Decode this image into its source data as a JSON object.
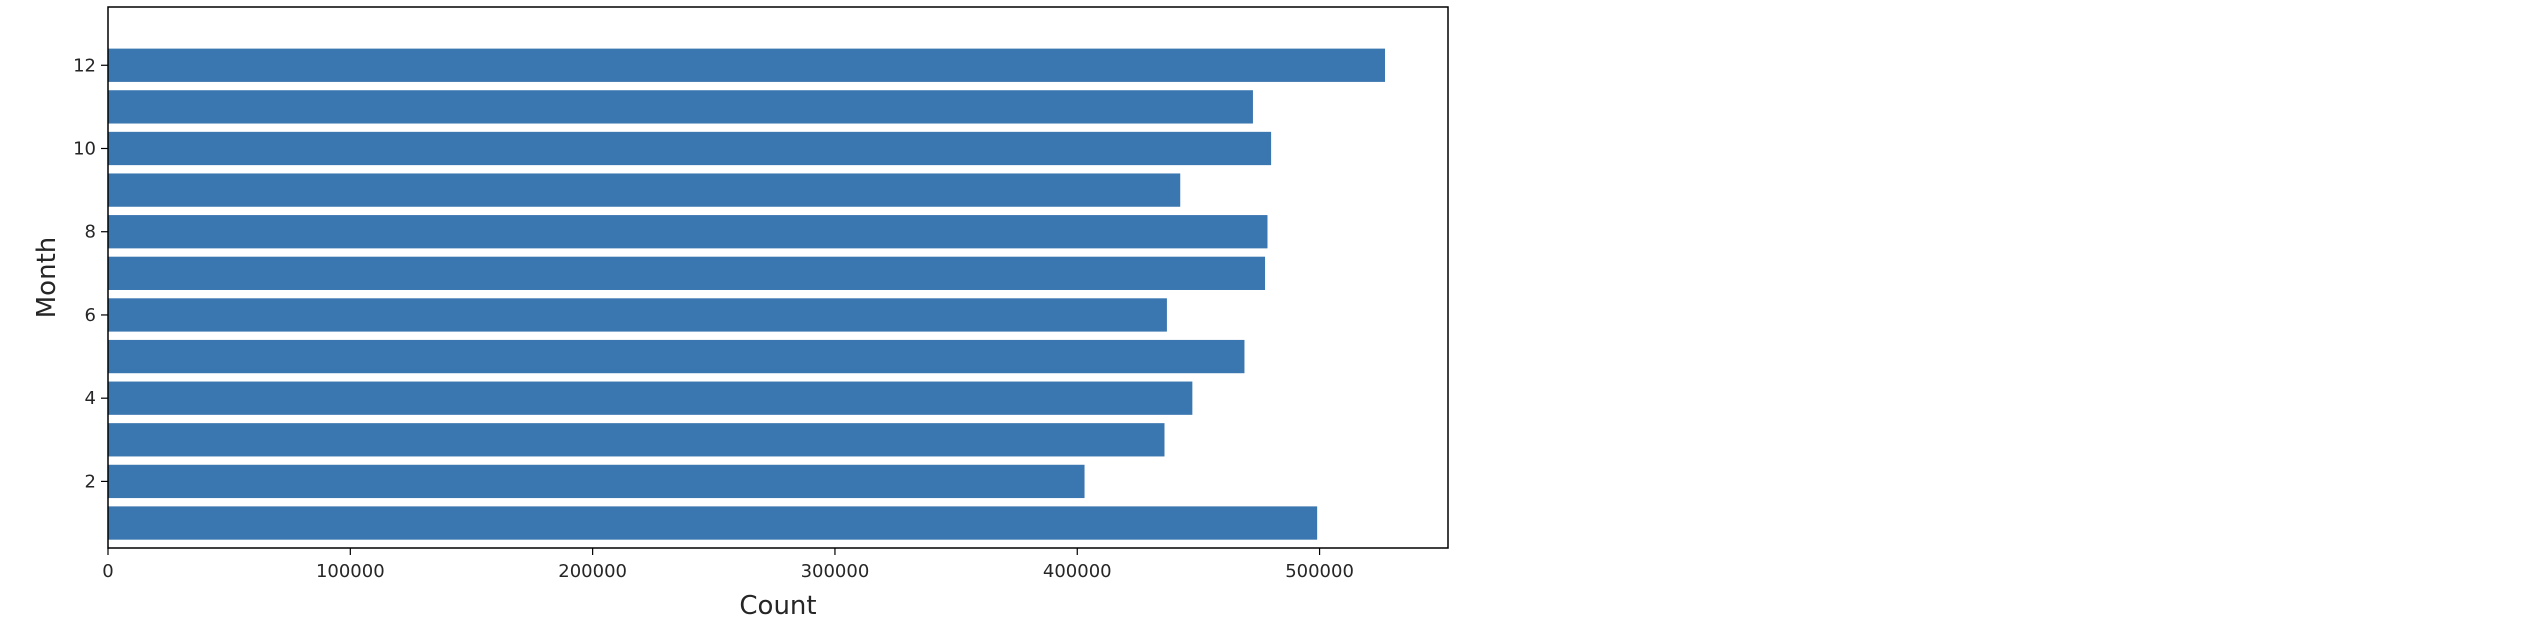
{
  "chart_data": {
    "type": "bar",
    "orientation": "horizontal",
    "categories": [
      1,
      2,
      3,
      4,
      5,
      6,
      7,
      8,
      9,
      10,
      11,
      12
    ],
    "values": [
      499000,
      403000,
      436000,
      447500,
      469000,
      437000,
      477500,
      478500,
      442500,
      480000,
      472500,
      527000
    ],
    "xlabel": "Count",
    "ylabel": "Month",
    "xlim": [
      0,
      553000
    ],
    "ylim": [
      0.4,
      13.4
    ],
    "xticks": [
      0,
      100000,
      200000,
      300000,
      400000,
      500000
    ],
    "yticks": [
      2,
      4,
      6,
      8,
      10,
      12
    ],
    "bar_color": "#3a76af",
    "grid": false,
    "legend": "none"
  }
}
